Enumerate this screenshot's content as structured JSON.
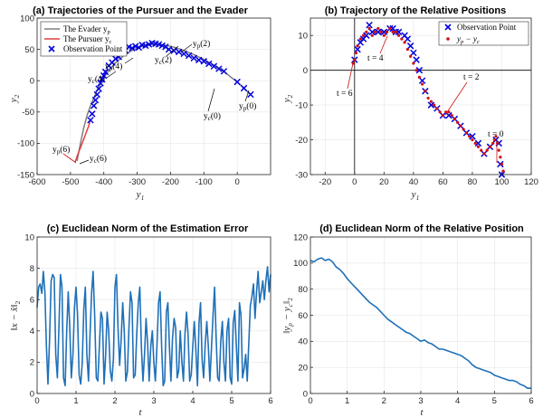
{
  "chart_data": [
    {
      "type": "line",
      "title": "(a) Trajectories of the Pursuer and the Evader",
      "xlabel": "y1",
      "ylabel": "y2",
      "xlim": [
        -600,
        100
      ],
      "ylim": [
        -150,
        100
      ],
      "xticks": [
        -600,
        -500,
        -400,
        -300,
        -200,
        -100,
        0
      ],
      "yticks": [
        -150,
        -100,
        -50,
        0,
        50,
        100
      ],
      "legend_position": "top-left",
      "series": [
        {
          "name": "The Evader y_p",
          "color": "#7f7f7f",
          "style": "line",
          "x": [
            40,
            20,
            0,
            -20,
            -40,
            -60,
            -80,
            -100,
            -120,
            -140,
            -160,
            -180,
            -200,
            -220,
            -240,
            -260,
            -280,
            -300,
            -320,
            -340,
            -360,
            -380,
            -400,
            -420,
            -440,
            -450,
            -460,
            -470,
            -480
          ],
          "y": [
            -22,
            -12,
            -2,
            6,
            15,
            22,
            28,
            34,
            39,
            44,
            48,
            52,
            55,
            57,
            58,
            58,
            56,
            52,
            47,
            40,
            31,
            20,
            5,
            -15,
            -40,
            -55,
            -75,
            -100,
            -128
          ]
        },
        {
          "name": "The Pursuer y_c",
          "color": "#e04040",
          "style": "line",
          "x": [
            -440,
            -445,
            -452,
            -460,
            -468,
            -476,
            -482,
            -486
          ],
          "y": [
            -62,
            -72,
            -82,
            -93,
            -104,
            -115,
            -124,
            -130
          ]
        },
        {
          "name": "Observation Point",
          "color": "#0000dd",
          "style": "marker-x",
          "x": [
            40,
            20,
            0,
            -40,
            -55,
            -70,
            -85,
            -100,
            -115,
            -130,
            -145,
            -160,
            -175,
            -190,
            -205,
            -215,
            -225,
            -235,
            -245,
            -255,
            -265,
            -275,
            -285,
            -295,
            -305,
            -315,
            -325,
            -335,
            -345,
            -355,
            -365,
            -375,
            -385,
            -395,
            -400,
            -405,
            -410,
            -415,
            -420,
            -425,
            -430,
            -435,
            -440
          ],
          "y": [
            -22,
            -12,
            -2,
            15,
            19,
            23,
            27,
            31,
            33,
            36,
            40,
            43,
            46,
            48,
            50,
            54,
            56,
            58,
            59,
            60,
            58,
            56,
            57,
            53,
            55,
            52,
            54,
            48,
            45,
            38,
            35,
            29,
            24,
            14,
            8,
            2,
            -4,
            -13,
            -22,
            -31,
            -40,
            -53,
            -63
          ]
        }
      ],
      "annotations": [
        "y_p(2)",
        "y_c(2)",
        "y_p(4)",
        "y_c(4)",
        "y_c(0)",
        "y_p(0)",
        "y_p(6)",
        "y_c(6)"
      ]
    },
    {
      "type": "scatter",
      "title": "(b) Trajectory of the Relative Positions",
      "xlabel": "y1",
      "ylabel": "y2",
      "xlim": [
        -30,
        120
      ],
      "ylim": [
        -30,
        15
      ],
      "xticks": [
        -20,
        0,
        20,
        40,
        60,
        80,
        100,
        120
      ],
      "yticks": [
        -30,
        -20,
        -10,
        0,
        10
      ],
      "legend_position": "top-right",
      "series": [
        {
          "name": "Observation Point",
          "color": "#0000dd",
          "style": "marker-x",
          "x": [
            100,
            99,
            98,
            96,
            92,
            88,
            84,
            80,
            76,
            72,
            68,
            64,
            60,
            56,
            52,
            48,
            46,
            44,
            42,
            40,
            38,
            36,
            34,
            30,
            28,
            26,
            24,
            20,
            16,
            12,
            10,
            8,
            6,
            4,
            2,
            0
          ],
          "y": [
            -30,
            -27,
            -21,
            -20,
            -22,
            -24,
            -21,
            -19,
            -18,
            -16,
            -14,
            -13,
            -13,
            -11,
            -10,
            -6,
            -3,
            0,
            3,
            5,
            7,
            9,
            10,
            11,
            11,
            12,
            12,
            11,
            11,
            11,
            13,
            10,
            9,
            8,
            6,
            3
          ]
        },
        {
          "name": "y_p - y_c",
          "color": "#cc1111",
          "style": "marker-dot",
          "x": [
            101,
            100,
            99,
            98,
            97,
            96,
            95,
            94,
            92,
            90,
            88,
            86,
            84,
            82,
            80,
            78,
            76,
            74,
            72,
            70,
            68,
            66,
            64,
            62,
            60,
            58,
            56,
            54,
            52,
            50,
            48,
            46,
            44,
            42,
            40,
            38,
            36,
            34,
            32,
            30,
            28,
            26,
            24,
            22,
            20,
            18,
            16,
            14,
            12,
            10,
            8,
            6,
            4,
            2,
            1,
            0,
            -1
          ],
          "y": [
            -29,
            -27,
            -25,
            -23,
            -21,
            -19,
            -20,
            -21,
            -22,
            -23,
            -24,
            -23,
            -22,
            -21,
            -20,
            -19,
            -18,
            -17,
            -16,
            -15,
            -14,
            -13,
            -12,
            -12,
            -13,
            -12,
            -11,
            -10,
            -9,
            -8,
            -6,
            -4,
            -2,
            0,
            2,
            4,
            6,
            8,
            9,
            10,
            11,
            11,
            12,
            11,
            10,
            11,
            12,
            11,
            10,
            12,
            11,
            10,
            9,
            7,
            5,
            3,
            2
          ]
        }
      ],
      "annotations": [
        "t = 0",
        "t = 2",
        "t = 4",
        "t = 6"
      ]
    },
    {
      "type": "line",
      "title": "(c) Euclidean Norm of the Estimation Error",
      "xlabel": "t",
      "ylabel": "||x - x̂||2",
      "xlim": [
        0,
        6
      ],
      "ylim": [
        0,
        10
      ],
      "xticks": [
        0,
        1,
        2,
        3,
        4,
        5,
        6
      ],
      "yticks": [
        0,
        2,
        4,
        6,
        8,
        10
      ],
      "series": [
        {
          "color": "#1f70b8",
          "x": [
            0,
            0.04,
            0.08,
            0.12,
            0.16,
            0.2,
            0.24,
            0.28,
            0.32,
            0.36,
            0.4,
            0.44,
            0.48,
            0.52,
            0.56,
            0.6,
            0.64,
            0.68,
            0.72,
            0.76,
            0.8,
            0.84,
            0.88,
            0.92,
            0.96,
            1.0,
            1.04,
            1.08,
            1.12,
            1.16,
            1.2,
            1.24,
            1.28,
            1.32,
            1.36,
            1.4,
            1.44,
            1.48,
            1.52,
            1.56,
            1.6,
            1.64,
            1.68,
            1.72,
            1.76,
            1.8,
            1.84,
            1.88,
            1.92,
            1.96,
            2.0,
            2.04,
            2.08,
            2.12,
            2.16,
            2.2,
            2.24,
            2.28,
            2.32,
            2.36,
            2.4,
            2.44,
            2.48,
            2.52,
            2.56,
            2.6,
            2.64,
            2.68,
            2.72,
            2.76,
            2.8,
            2.84,
            2.88,
            2.92,
            2.96,
            3.0,
            3.04,
            3.08,
            3.12,
            3.16,
            3.2,
            3.24,
            3.28,
            3.32,
            3.36,
            3.4,
            3.44,
            3.48,
            3.52,
            3.56,
            3.6,
            3.64,
            3.68,
            3.72,
            3.76,
            3.8,
            3.84,
            3.88,
            3.92,
            3.96,
            4.0,
            4.04,
            4.08,
            4.12,
            4.16,
            4.2,
            4.24,
            4.28,
            4.32,
            4.36,
            4.4,
            4.44,
            4.48,
            4.52,
            4.56,
            4.6,
            4.64,
            4.68,
            4.72,
            4.76,
            4.8,
            4.84,
            4.88,
            4.92,
            4.96,
            5.0,
            5.04,
            5.08,
            5.12,
            5.16,
            5.2,
            5.24,
            5.28,
            5.32,
            5.36,
            5.4,
            5.44,
            5.48,
            5.52,
            5.56,
            5.6,
            5.64,
            5.68,
            5.72,
            5.76,
            5.8,
            5.84,
            5.88,
            5.92,
            5.96,
            6.0
          ],
          "y": [
            5.5,
            6.8,
            7.0,
            6.4,
            7.8,
            6.5,
            3.0,
            0.6,
            3.5,
            7.2,
            7.6,
            7.4,
            2.5,
            1.0,
            4.2,
            7.6,
            6.8,
            1.0,
            0.5,
            4.0,
            6.5,
            4.2,
            1.0,
            2.5,
            5.5,
            6.8,
            5.0,
            1.2,
            0.6,
            2.0,
            5.4,
            6.8,
            2.5,
            0.8,
            3.8,
            6.4,
            7.8,
            5.0,
            1.0,
            0.8,
            3.0,
            5.2,
            4.8,
            0.6,
            2.4,
            5.2,
            4.0,
            1.5,
            0.8,
            2.2,
            6.8,
            7.6,
            4.2,
            1.8,
            3.5,
            5.8,
            4.0,
            0.8,
            1.4,
            4.2,
            6.5,
            5.8,
            1.0,
            1.2,
            3.8,
            5.8,
            6.8,
            3.0,
            0.8,
            2.5,
            4.8,
            3.2,
            0.8,
            3.0,
            4.0,
            2.0,
            0.8,
            3.0,
            5.8,
            6.5,
            3.0,
            0.5,
            0.8,
            5.2,
            5.8,
            3.0,
            0.8,
            3.5,
            4.8,
            4.2,
            1.0,
            1.5,
            4.0,
            2.0,
            0.8,
            3.8,
            5.2,
            3.8,
            0.8,
            1.2,
            3.0,
            4.6,
            2.8,
            0.5,
            4.5,
            5.8,
            2.2,
            1.0,
            3.2,
            4.6,
            3.0,
            0.8,
            2.8,
            5.0,
            6.8,
            3.6,
            1.0,
            0.8,
            3.4,
            4.6,
            2.0,
            0.8,
            4.0,
            4.8,
            1.0,
            0.6,
            4.5,
            5.3,
            3.0,
            0.8,
            5.8,
            5.0,
            1.0,
            1.6,
            2.5,
            0.8,
            3.2,
            5.6,
            6.2,
            7.0,
            4.8,
            6.5,
            7.8,
            5.8,
            6.5,
            7.2,
            6.0,
            7.2,
            8.1,
            6.5,
            7.6
          ]
        }
      ]
    },
    {
      "type": "line",
      "title": "(d) Euclidean Norm of the Relative Position",
      "xlabel": "t",
      "ylabel": "||yp - yc||2",
      "xlim": [
        0,
        6
      ],
      "ylim": [
        0,
        120
      ],
      "xticks": [
        0,
        1,
        2,
        3,
        4,
        5,
        6
      ],
      "yticks": [
        0,
        20,
        40,
        60,
        80,
        100,
        120
      ],
      "series": [
        {
          "color": "#1f70b8",
          "x": [
            0,
            0.1,
            0.2,
            0.3,
            0.4,
            0.5,
            0.6,
            0.7,
            0.8,
            0.9,
            1.0,
            1.1,
            1.2,
            1.3,
            1.4,
            1.5,
            1.6,
            1.7,
            1.8,
            1.9,
            2.0,
            2.1,
            2.2,
            2.3,
            2.4,
            2.5,
            2.6,
            2.7,
            2.8,
            2.9,
            3.0,
            3.1,
            3.2,
            3.3,
            3.4,
            3.5,
            3.6,
            3.7,
            3.8,
            3.9,
            4.0,
            4.1,
            4.2,
            4.3,
            4.4,
            4.5,
            4.6,
            4.7,
            4.8,
            4.9,
            5.0,
            5.1,
            5.2,
            5.3,
            5.4,
            5.5,
            5.6,
            5.7,
            5.8,
            5.9,
            6.0
          ],
          "y": [
            102,
            101,
            103,
            104,
            102,
            103,
            101,
            97,
            95,
            92,
            88,
            85,
            82,
            79,
            76,
            73,
            70,
            68,
            66,
            63,
            60,
            57,
            55,
            53,
            51,
            49,
            47,
            46,
            44,
            42,
            40,
            41,
            39,
            38,
            36,
            34,
            34,
            33,
            32,
            31,
            30,
            29,
            27,
            25,
            22,
            20,
            19,
            18,
            17,
            16,
            14,
            13,
            12,
            11,
            10,
            10,
            9,
            7,
            6,
            4,
            4
          ]
        }
      ]
    }
  ]
}
